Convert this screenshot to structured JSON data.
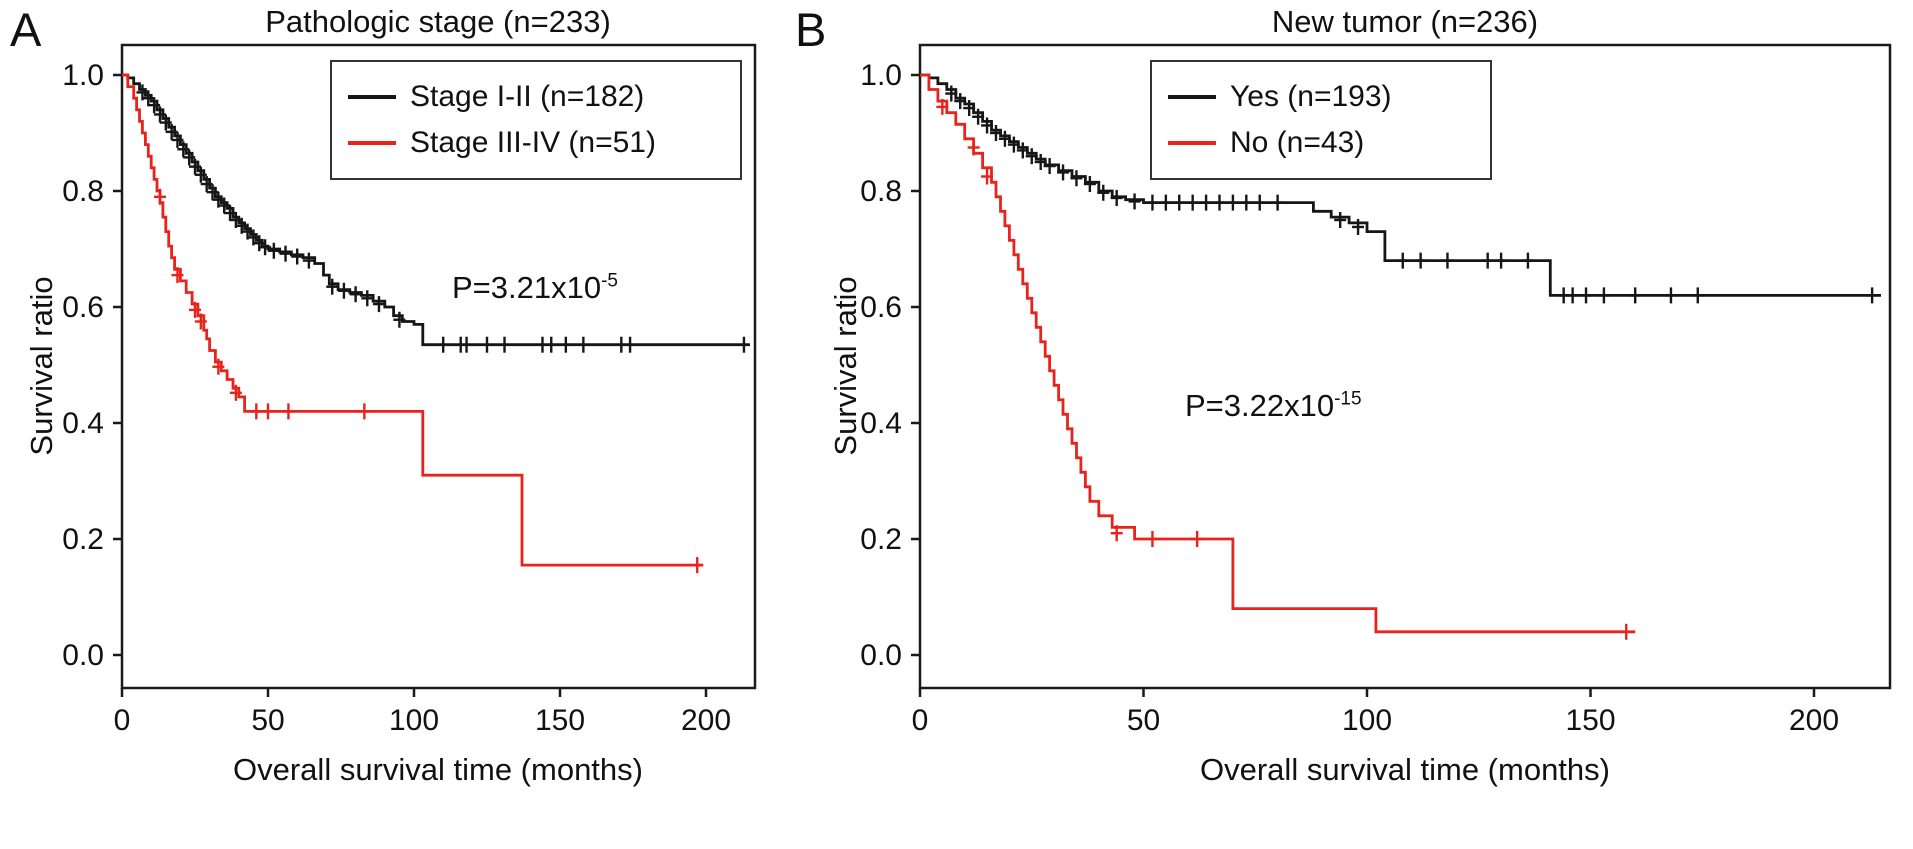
{
  "figure": {
    "background": "#ffffff",
    "curve_colors": {
      "black": "#161616",
      "red": "#e8231c"
    },
    "panels": [
      {
        "letter": "A",
        "title": "Pathologic stage (n=233)",
        "xlabel": "Overall survival time (months)",
        "ylabel": "Survival ratio",
        "pvalue": {
          "base": "P=3.21x10",
          "exponent": "-5"
        },
        "legend": [
          {
            "label": "Stage I-II (n=182)",
            "color": "#161616"
          },
          {
            "label": "Stage III-IV (n=51)",
            "color": "#e8231c"
          }
        ]
      },
      {
        "letter": "B",
        "title": "New tumor (n=236)",
        "xlabel": "Overall survival time (months)",
        "ylabel": "Survival ratio",
        "pvalue": {
          "base": "P=3.22x10",
          "exponent": "-15"
        },
        "legend": [
          {
            "label": "Yes (n=193)",
            "color": "#161616"
          },
          {
            "label": "No (n=43)",
            "color": "#e8231c"
          }
        ]
      }
    ]
  },
  "chart_data": [
    {
      "type": "line",
      "subtype": "kaplan_meier_step",
      "title": "Pathologic stage (n=233)",
      "xlabel": "Overall survival time (months)",
      "ylabel": "Survival ratio",
      "xlim": [
        0,
        217
      ],
      "ylim": [
        0,
        1.0
      ],
      "xticks": [
        0,
        50,
        100,
        150,
        200
      ],
      "yticks": [
        0,
        0.2,
        0.4,
        0.6,
        0.8,
        1.0
      ],
      "grid": false,
      "legend_position": "upper right inside",
      "annotation": "P=3.21x10^-5",
      "series": [
        {
          "name": "Stage I-II (n=182)",
          "n": 182,
          "color": "#161616",
          "points": [
            [
              0,
              1.0
            ],
            [
              2,
              0.995
            ],
            [
              4,
              0.985
            ],
            [
              6,
              0.975
            ],
            [
              8,
              0.965
            ],
            [
              10,
              0.955
            ],
            [
              12,
              0.94
            ],
            [
              14,
              0.925
            ],
            [
              16,
              0.91
            ],
            [
              18,
              0.895
            ],
            [
              20,
              0.88
            ],
            [
              22,
              0.865
            ],
            [
              24,
              0.85
            ],
            [
              26,
              0.835
            ],
            [
              28,
              0.82
            ],
            [
              30,
              0.805
            ],
            [
              32,
              0.79
            ],
            [
              34,
              0.78
            ],
            [
              36,
              0.77
            ],
            [
              38,
              0.755
            ],
            [
              40,
              0.745
            ],
            [
              42,
              0.735
            ],
            [
              44,
              0.725
            ],
            [
              46,
              0.715
            ],
            [
              48,
              0.705
            ],
            [
              50,
              0.7
            ],
            [
              54,
              0.695
            ],
            [
              58,
              0.69
            ],
            [
              62,
              0.685
            ],
            [
              66,
              0.675
            ],
            [
              69,
              0.655
            ],
            [
              71,
              0.64
            ],
            [
              74,
              0.63
            ],
            [
              78,
              0.625
            ],
            [
              82,
              0.62
            ],
            [
              86,
              0.61
            ],
            [
              90,
              0.6
            ],
            [
              93,
              0.585
            ],
            [
              96,
              0.575
            ],
            [
              100,
              0.57
            ],
            [
              103,
              0.535
            ],
            [
              215,
              0.535
            ]
          ],
          "censor_marks": [
            [
              7,
              0.97
            ],
            [
              9,
              0.96
            ],
            [
              11,
              0.948
            ],
            [
              13,
              0.932
            ],
            [
              15,
              0.918
            ],
            [
              17,
              0.902
            ],
            [
              19,
              0.888
            ],
            [
              21,
              0.872
            ],
            [
              23,
              0.858
            ],
            [
              25,
              0.842
            ],
            [
              27,
              0.828
            ],
            [
              29,
              0.812
            ],
            [
              31,
              0.798
            ],
            [
              33,
              0.785
            ],
            [
              35,
              0.775
            ],
            [
              37,
              0.762
            ],
            [
              39,
              0.75
            ],
            [
              41,
              0.74
            ],
            [
              43,
              0.73
            ],
            [
              45,
              0.72
            ],
            [
              47,
              0.71
            ],
            [
              49,
              0.703
            ],
            [
              52,
              0.697
            ],
            [
              56,
              0.692
            ],
            [
              60,
              0.687
            ],
            [
              64,
              0.68
            ],
            [
              72,
              0.635
            ],
            [
              76,
              0.628
            ],
            [
              80,
              0.622
            ],
            [
              84,
              0.615
            ],
            [
              88,
              0.605
            ],
            [
              95,
              0.578
            ],
            [
              110,
              0.535
            ],
            [
              116,
              0.535
            ],
            [
              118,
              0.535
            ],
            [
              125,
              0.535
            ],
            [
              131,
              0.535
            ],
            [
              144,
              0.535
            ],
            [
              147,
              0.535
            ],
            [
              152,
              0.535
            ],
            [
              158,
              0.535
            ],
            [
              171,
              0.535
            ],
            [
              174,
              0.535
            ],
            [
              213,
              0.535
            ]
          ]
        },
        {
          "name": "Stage III-IV (n=51)",
          "n": 51,
          "color": "#e8231c",
          "points": [
            [
              0,
              1.0
            ],
            [
              2,
              0.98
            ],
            [
              4,
              0.96
            ],
            [
              5,
              0.94
            ],
            [
              6,
              0.92
            ],
            [
              7,
              0.9
            ],
            [
              8,
              0.88
            ],
            [
              9,
              0.86
            ],
            [
              10,
              0.84
            ],
            [
              11,
              0.82
            ],
            [
              12,
              0.8
            ],
            [
              13,
              0.78
            ],
            [
              14,
              0.755
            ],
            [
              15,
              0.73
            ],
            [
              16,
              0.705
            ],
            [
              17,
              0.685
            ],
            [
              18,
              0.665
            ],
            [
              20,
              0.645
            ],
            [
              22,
              0.625
            ],
            [
              24,
              0.605
            ],
            [
              26,
              0.585
            ],
            [
              28,
              0.56
            ],
            [
              29,
              0.545
            ],
            [
              30,
              0.525
            ],
            [
              32,
              0.505
            ],
            [
              34,
              0.49
            ],
            [
              36,
              0.475
            ],
            [
              38,
              0.46
            ],
            [
              40,
              0.445
            ],
            [
              42,
              0.42
            ],
            [
              101,
              0.42
            ],
            [
              103,
              0.31
            ],
            [
              135,
              0.31
            ],
            [
              137,
              0.155
            ],
            [
              199,
              0.155
            ]
          ],
          "censor_marks": [
            [
              13,
              0.79
            ],
            [
              19,
              0.655
            ],
            [
              25,
              0.595
            ],
            [
              27,
              0.575
            ],
            [
              33,
              0.497
            ],
            [
              39,
              0.452
            ],
            [
              46,
              0.42
            ],
            [
              50,
              0.42
            ],
            [
              57,
              0.42
            ],
            [
              83,
              0.42
            ],
            [
              197,
              0.155
            ]
          ]
        }
      ]
    },
    {
      "type": "line",
      "subtype": "kaplan_meier_step",
      "title": "New tumor (n=236)",
      "xlabel": "Overall survival time (months)",
      "ylabel": "Survival ratio",
      "xlim": [
        0,
        217
      ],
      "ylim": [
        0,
        1.0
      ],
      "xticks": [
        0,
        50,
        100,
        150,
        200
      ],
      "yticks": [
        0,
        0.2,
        0.4,
        0.6,
        0.8,
        1.0
      ],
      "grid": false,
      "legend_position": "upper right inside",
      "annotation": "P=3.22x10^-15",
      "series": [
        {
          "name": "Yes (n=193)",
          "n": 193,
          "color": "#161616",
          "points": [
            [
              0,
              1.0
            ],
            [
              2,
              0.995
            ],
            [
              4,
              0.985
            ],
            [
              6,
              0.975
            ],
            [
              8,
              0.96
            ],
            [
              10,
              0.95
            ],
            [
              12,
              0.935
            ],
            [
              14,
              0.92
            ],
            [
              16,
              0.905
            ],
            [
              18,
              0.895
            ],
            [
              20,
              0.885
            ],
            [
              22,
              0.875
            ],
            [
              24,
              0.865
            ],
            [
              26,
              0.855
            ],
            [
              28,
              0.845
            ],
            [
              31,
              0.835
            ],
            [
              34,
              0.825
            ],
            [
              37,
              0.815
            ],
            [
              40,
              0.8
            ],
            [
              43,
              0.79
            ],
            [
              46,
              0.785
            ],
            [
              50,
              0.78
            ],
            [
              86,
              0.78
            ],
            [
              88,
              0.765
            ],
            [
              92,
              0.755
            ],
            [
              96,
              0.745
            ],
            [
              100,
              0.73
            ],
            [
              104,
              0.68
            ],
            [
              138,
              0.68
            ],
            [
              141,
              0.62
            ],
            [
              215,
              0.62
            ]
          ],
          "censor_marks": [
            [
              7,
              0.968
            ],
            [
              9,
              0.955
            ],
            [
              11,
              0.943
            ],
            [
              13,
              0.928
            ],
            [
              15,
              0.913
            ],
            [
              17,
              0.9
            ],
            [
              19,
              0.89
            ],
            [
              21,
              0.88
            ],
            [
              23,
              0.87
            ],
            [
              25,
              0.86
            ],
            [
              27,
              0.85
            ],
            [
              29,
              0.843
            ],
            [
              32,
              0.832
            ],
            [
              35,
              0.822
            ],
            [
              38,
              0.812
            ],
            [
              41,
              0.797
            ],
            [
              44,
              0.788
            ],
            [
              48,
              0.782
            ],
            [
              52,
              0.78
            ],
            [
              55,
              0.78
            ],
            [
              58,
              0.78
            ],
            [
              61,
              0.78
            ],
            [
              64,
              0.78
            ],
            [
              67,
              0.78
            ],
            [
              70,
              0.78
            ],
            [
              73,
              0.78
            ],
            [
              76,
              0.78
            ],
            [
              80,
              0.78
            ],
            [
              94,
              0.75
            ],
            [
              98,
              0.738
            ],
            [
              108,
              0.68
            ],
            [
              112,
              0.68
            ],
            [
              118,
              0.68
            ],
            [
              127,
              0.68
            ],
            [
              130,
              0.68
            ],
            [
              136,
              0.68
            ],
            [
              144,
              0.62
            ],
            [
              146,
              0.62
            ],
            [
              149,
              0.62
            ],
            [
              153,
              0.62
            ],
            [
              160,
              0.62
            ],
            [
              168,
              0.62
            ],
            [
              174,
              0.62
            ],
            [
              213,
              0.62
            ]
          ]
        },
        {
          "name": "No (n=43)",
          "n": 43,
          "color": "#e8231c",
          "points": [
            [
              0,
              1.0
            ],
            [
              2,
              0.975
            ],
            [
              4,
              0.955
            ],
            [
              6,
              0.935
            ],
            [
              8,
              0.915
            ],
            [
              10,
              0.89
            ],
            [
              12,
              0.865
            ],
            [
              14,
              0.84
            ],
            [
              16,
              0.815
            ],
            [
              17,
              0.79
            ],
            [
              18,
              0.765
            ],
            [
              19,
              0.74
            ],
            [
              20,
              0.715
            ],
            [
              21,
              0.69
            ],
            [
              22,
              0.665
            ],
            [
              23,
              0.64
            ],
            [
              24,
              0.615
            ],
            [
              25,
              0.59
            ],
            [
              26,
              0.565
            ],
            [
              27,
              0.54
            ],
            [
              28,
              0.515
            ],
            [
              29,
              0.49
            ],
            [
              30,
              0.465
            ],
            [
              31,
              0.44
            ],
            [
              32,
              0.415
            ],
            [
              33,
              0.39
            ],
            [
              34,
              0.365
            ],
            [
              35,
              0.34
            ],
            [
              36,
              0.315
            ],
            [
              37,
              0.29
            ],
            [
              38,
              0.265
            ],
            [
              40,
              0.24
            ],
            [
              43,
              0.22
            ],
            [
              48,
              0.2
            ],
            [
              68,
              0.2
            ],
            [
              70,
              0.08
            ],
            [
              100,
              0.08
            ],
            [
              102,
              0.04
            ],
            [
              160,
              0.04
            ]
          ],
          "censor_marks": [
            [
              5,
              0.945
            ],
            [
              12,
              0.875
            ],
            [
              15,
              0.825
            ],
            [
              44,
              0.21
            ],
            [
              52,
              0.2
            ],
            [
              62,
              0.2
            ],
            [
              158,
              0.04
            ]
          ]
        }
      ]
    }
  ]
}
